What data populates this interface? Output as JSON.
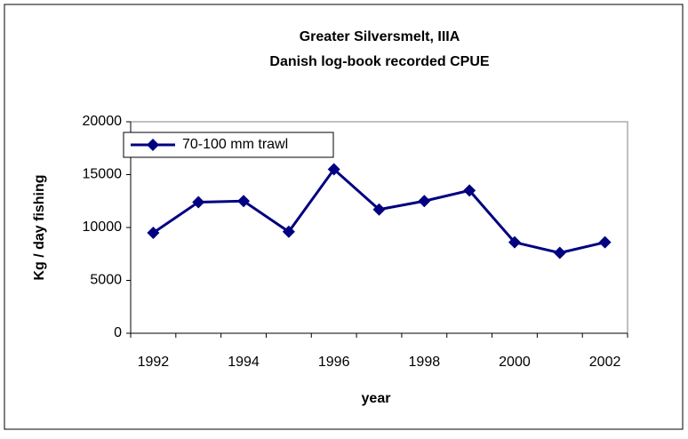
{
  "chart_data": {
    "type": "line",
    "title": "Greater Silversmelt, IIIA",
    "subtitle": "Danish log-book recorded CPUE",
    "x_label": "year",
    "y_label": "Kg / day fishing",
    "categories": [
      "1992",
      null,
      "1994",
      null,
      "1996",
      null,
      "1998",
      null,
      "2000",
      null,
      "2002"
    ],
    "series": [
      {
        "name": "70-100 mm trawl",
        "color": "#000080",
        "values": [
          9500,
          12400,
          12500,
          9600,
          15500,
          11700,
          12500,
          13500,
          8600,
          7600,
          8600
        ]
      }
    ],
    "ylim": [
      0,
      20000
    ],
    "yticks": [
      0,
      5000,
      10000,
      15000,
      20000
    ],
    "legend": "top-left"
  }
}
